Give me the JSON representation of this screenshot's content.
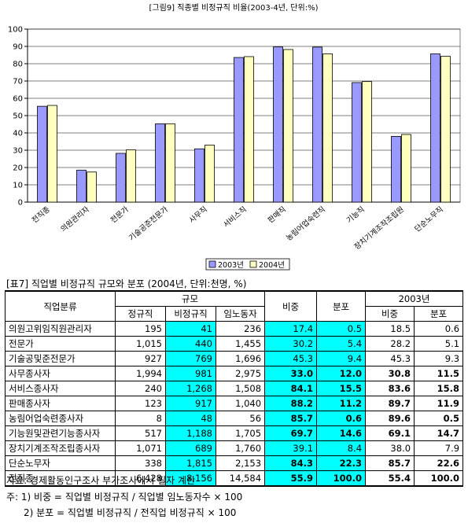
{
  "chart_data": {
    "type": "bar",
    "title": "[그림9] 직종별 비정규직 비율(2003-4년, 단위:%)",
    "categories": [
      "전직종",
      "의원관리자",
      "전문가",
      "기술공준전문가",
      "사무직",
      "서비스직",
      "판매직",
      "농림어업숙련직",
      "기능직",
      "장치기계조작조립원",
      "단순노무직"
    ],
    "series": [
      {
        "name": "2003년",
        "color": "#9999ff",
        "values": [
          55.4,
          18.5,
          28.2,
          45.3,
          30.8,
          83.6,
          89.7,
          89.6,
          69.1,
          38.0,
          85.7
        ]
      },
      {
        "name": "2004년",
        "color": "#ffffc0",
        "values": [
          55.9,
          17.4,
          30.2,
          45.3,
          33.0,
          84.1,
          88.2,
          85.7,
          69.7,
          39.1,
          84.3
        ]
      }
    ],
    "yticks": [
      "0",
      "10",
      "20",
      "30",
      "40",
      "50",
      "60",
      "70",
      "80",
      "90",
      "100"
    ],
    "ylim": [
      0,
      100
    ],
    "grid": true,
    "legend": "bottom-right"
  },
  "table": {
    "title": "[표7] 직업별 비정규직 규모와 분포 (2004년, 단위:천명, %)",
    "header": {
      "category": "직업분류",
      "scale": "규모",
      "ratio": "비중",
      "dist": "분포",
      "year2003": "2003년",
      "regular": "정규직",
      "nonregular": "비정규직",
      "wage": "임노동자",
      "ratio2003": "비중",
      "dist2003": "분포"
    },
    "rows": [
      {
        "name": "의원고위임직원관리자",
        "reg": "195",
        "nonreg": "41",
        "wage": "236",
        "ratio": "17.4",
        "dist": "0.5",
        "r03": "18.5",
        "d03": "0.6",
        "bold": false
      },
      {
        "name": "전문가",
        "reg": "1,015",
        "nonreg": "440",
        "wage": "1,455",
        "ratio": "30.2",
        "dist": "5.4",
        "r03": "28.2",
        "d03": "5.1",
        "bold": false
      },
      {
        "name": "기술공및준전문가",
        "reg": "927",
        "nonreg": "769",
        "wage": "1,696",
        "ratio": "45.3",
        "dist": "9.4",
        "r03": "45.3",
        "d03": "9.3",
        "bold": false
      },
      {
        "name": "사무종사자",
        "reg": "1,994",
        "nonreg": "981",
        "wage": "2,975",
        "ratio": "33.0",
        "dist": "12.0",
        "r03": "30.8",
        "d03": "11.5",
        "bold": true
      },
      {
        "name": "서비스종사자",
        "reg": "240",
        "nonreg": "1,268",
        "wage": "1,508",
        "ratio": "84.1",
        "dist": "15.5",
        "r03": "83.6",
        "d03": "15.8",
        "bold": true
      },
      {
        "name": "판매종사자",
        "reg": "123",
        "nonreg": "917",
        "wage": "1,040",
        "ratio": "88.2",
        "dist": "11.2",
        "r03": "89.7",
        "d03": "11.9",
        "bold": true
      },
      {
        "name": "농림어업숙련종사자",
        "reg": "8",
        "nonreg": "48",
        "wage": "56",
        "ratio": "85.7",
        "dist": "0.6",
        "r03": "89.6",
        "d03": "0.5",
        "bold": true
      },
      {
        "name": "기능원및관련기능종사자",
        "reg": "517",
        "nonreg": "1,188",
        "wage": "1,705",
        "ratio": "69.7",
        "dist": "14.6",
        "r03": "69.1",
        "d03": "14.7",
        "bold": true
      },
      {
        "name": "장치기계조작조립종사자",
        "reg": "1,071",
        "nonreg": "689",
        "wage": "1,760",
        "ratio": "39.1",
        "dist": "8.4",
        "r03": "38.0",
        "d03": "7.9",
        "bold": false
      },
      {
        "name": "단순노무자",
        "reg": "338",
        "nonreg": "1,815",
        "wage": "2,153",
        "ratio": "84.3",
        "dist": "22.3",
        "r03": "85.7",
        "d03": "22.6",
        "bold": true
      },
      {
        "name": "전직종",
        "reg": "6,428",
        "nonreg": "8,156",
        "wage": "14,584",
        "ratio": "55.9",
        "dist": "100.0",
        "r03": "55.4",
        "d03": "100.0",
        "bold": true
      }
    ]
  },
  "notes": {
    "source": "자료: 경제활동인구조사 부가조사에서 필자 계산",
    "note1": "주: 1) 비중 = 직업별 비정규직 / 직업별 임노동자수 × 100",
    "note2": "2) 분포 = 직업별 비정규직 / 전직업 비정규직 × 100"
  }
}
